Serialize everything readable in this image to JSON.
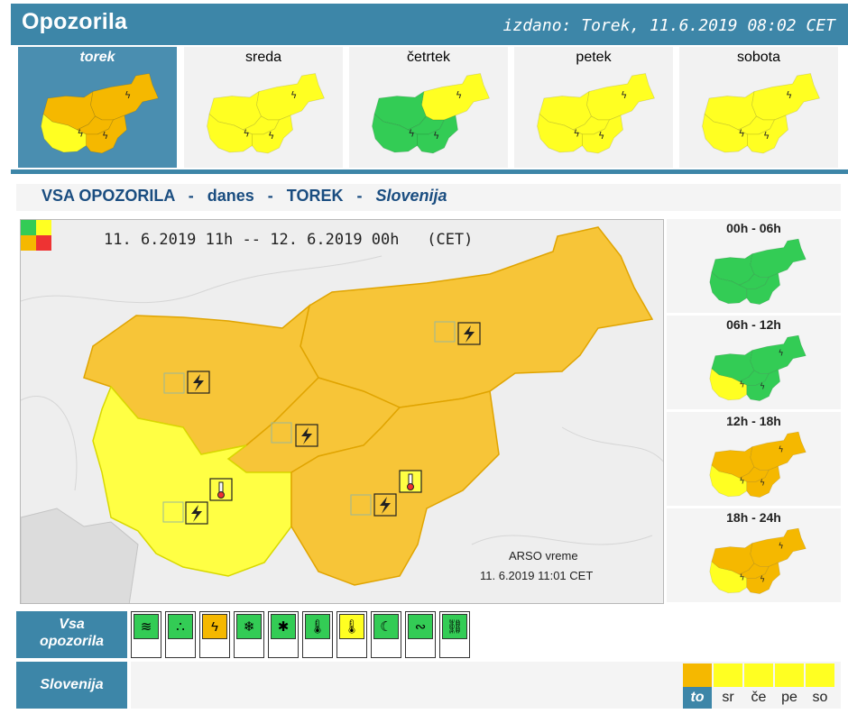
{
  "header": {
    "title": "Opozorila",
    "issued": "izdano: Torek, 11.6.2019 08:02 CET"
  },
  "days": [
    {
      "label": "torek",
      "active": true,
      "regions": {
        "nw": "#f5b800",
        "ne": "#f5b800",
        "c": "#f5b800",
        "sw": "#ffff22",
        "se": "#f5b800"
      }
    },
    {
      "label": "sreda",
      "active": false,
      "regions": {
        "nw": "#ffff22",
        "ne": "#ffff22",
        "c": "#ffff22",
        "sw": "#ffff22",
        "se": "#ffff22"
      }
    },
    {
      "label": "četrtek",
      "active": false,
      "regions": {
        "nw": "#33cc55",
        "ne": "#ffff22",
        "c": "#33cc55",
        "sw": "#33cc55",
        "se": "#33cc55"
      }
    },
    {
      "label": "petek",
      "active": false,
      "regions": {
        "nw": "#ffff22",
        "ne": "#ffff22",
        "c": "#ffff22",
        "sw": "#ffff22",
        "se": "#ffff22"
      }
    },
    {
      "label": "sobota",
      "active": false,
      "regions": {
        "nw": "#ffff22",
        "ne": "#ffff22",
        "c": "#ffff22",
        "sw": "#ffff22",
        "se": "#ffff22"
      }
    }
  ],
  "subtitle": {
    "part1": "VSA OPOZORILA",
    "sep": "-",
    "part2": "danes",
    "part3": "TOREK",
    "part4": "Slovenija"
  },
  "main_map": {
    "time_range": "11. 6.2019 11h -- 12. 6.2019 00h   (CET)",
    "credit_line1": "ARSO vreme",
    "credit_line2": "11. 6.2019  11:01 CET",
    "legend_colors": [
      "#33cc55",
      "#ffff22",
      "#f5b800",
      "#ee3333"
    ],
    "regions": {
      "nw": "#f7c538",
      "ne": "#f7c538",
      "c": "#f7c538",
      "sw": "#ffff44",
      "se": "#f7c538"
    },
    "icons": [
      "lightning-icon",
      "thermometer-icon"
    ]
  },
  "periods": [
    {
      "label": "00h - 06h",
      "regions": {
        "nw": "#33cc55",
        "ne": "#33cc55",
        "c": "#33cc55",
        "sw": "#33cc55",
        "se": "#33cc55"
      }
    },
    {
      "label": "06h - 12h",
      "regions": {
        "nw": "#33cc55",
        "ne": "#33cc55",
        "c": "#33cc55",
        "sw": "#ffff22",
        "se": "#33cc55"
      }
    },
    {
      "label": "12h - 18h",
      "regions": {
        "nw": "#f5b800",
        "ne": "#f5b800",
        "c": "#f5b800",
        "sw": "#ffff22",
        "se": "#f5b800"
      }
    },
    {
      "label": "18h - 24h",
      "regions": {
        "nw": "#f5b800",
        "ne": "#f5b800",
        "c": "#f5b800",
        "sw": "#ffff22",
        "se": "#f5b800"
      }
    }
  ],
  "bottom": {
    "all_label_line1": "Vsa",
    "all_label_line2": "opozorila",
    "slovenija_label": "Slovenija",
    "warning_types": [
      {
        "name": "wind",
        "color": "#33cc55",
        "glyph": "≋"
      },
      {
        "name": "rain",
        "color": "#33cc55",
        "glyph": "∴"
      },
      {
        "name": "thunderstorm",
        "color": "#f5b800",
        "glyph": "ϟ"
      },
      {
        "name": "snow",
        "color": "#33cc55",
        "glyph": "❄"
      },
      {
        "name": "snow-ice",
        "color": "#33cc55",
        "glyph": "✱"
      },
      {
        "name": "low-temperature",
        "color": "#33cc55",
        "glyph": "🌡"
      },
      {
        "name": "high-temperature",
        "color": "#ffff22",
        "glyph": "🌡"
      },
      {
        "name": "fog",
        "color": "#33cc55",
        "glyph": "☾"
      },
      {
        "name": "coastal",
        "color": "#33cc55",
        "glyph": "∾"
      },
      {
        "name": "avalanche",
        "color": "#33cc55",
        "glyph": "⛓"
      }
    ],
    "day_tiles": [
      {
        "label": "to",
        "color": "#f5b800",
        "active": true
      },
      {
        "label": "sr",
        "color": "#ffff22",
        "active": false
      },
      {
        "label": "če",
        "color": "#ffff22",
        "active": false
      },
      {
        "label": "pe",
        "color": "#ffff22",
        "active": false
      },
      {
        "label": "so",
        "color": "#ffff22",
        "active": false
      }
    ]
  }
}
